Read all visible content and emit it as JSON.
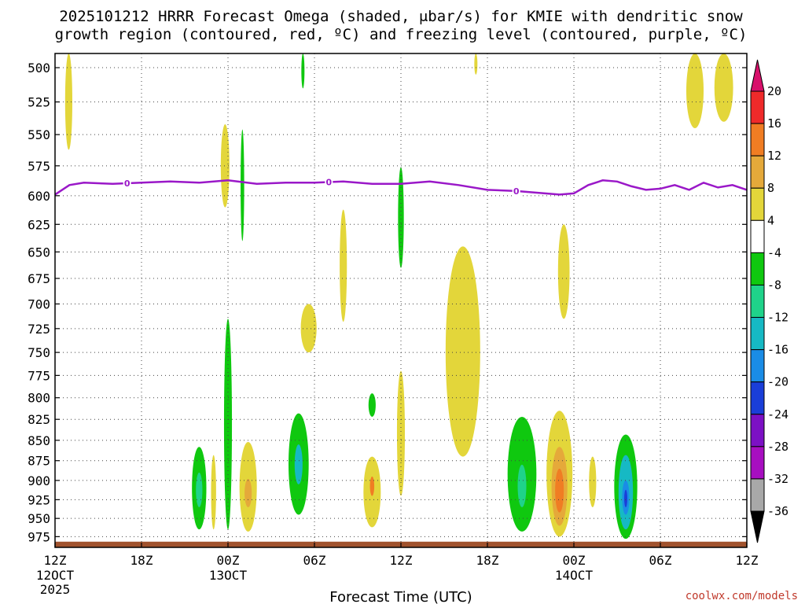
{
  "chart_data": {
    "type": "heatmap",
    "title_line1": "2025101212 HRRR Forecast Omega (shaded, μbar/s) for KMIE with dendritic snow",
    "title_line2": "growth region (contoured, red, ºC) and freezing level (contoured, purple, ºC)",
    "xlabel": "Forecast Time (UTC)",
    "credit": "coolwx.com/models",
    "x_hours": [
      0,
      6,
      12,
      18,
      24,
      30,
      36,
      42,
      48
    ],
    "x_ticks": [
      {
        "h": 0,
        "label": "12Z",
        "sub": "12OCT",
        "sub2": "2025"
      },
      {
        "h": 6,
        "label": "18Z"
      },
      {
        "h": 12,
        "label": "00Z",
        "sub": "13OCT"
      },
      {
        "h": 18,
        "label": "06Z"
      },
      {
        "h": 24,
        "label": "12Z"
      },
      {
        "h": 30,
        "label": "18Z"
      },
      {
        "h": 36,
        "label": "00Z",
        "sub": "14OCT"
      },
      {
        "h": 42,
        "label": "06Z"
      },
      {
        "h": 48,
        "label": "12Z"
      }
    ],
    "y_pressure_ticks": [
      "500",
      "525",
      "550",
      "575",
      "600",
      "625",
      "650",
      "675",
      "700",
      "725",
      "750",
      "775",
      "800",
      "825",
      "850",
      "875",
      "900",
      "925",
      "950",
      "975"
    ],
    "ylim_hpa": [
      990,
      490
    ],
    "colorbar": {
      "levels": [
        "20",
        "16",
        "12",
        "8",
        "4",
        "-4",
        "-8",
        "-12",
        "-16",
        "-20",
        "-24",
        "-28",
        "-32",
        "-36"
      ],
      "colors": [
        "#d8106b",
        "#ef2a2a",
        "#f07d23",
        "#e5a93a",
        "#e3d63a",
        "#ffffff",
        "#0fc80f",
        "#1fd38a",
        "#16b9c4",
        "#1a8ce6",
        "#1a3ed8",
        "#7c10c4",
        "#a70ec0",
        "#a8a8a8",
        "#000000"
      ]
    },
    "freezing_level": {
      "label": "0",
      "hours": [
        0,
        1,
        2,
        4,
        6,
        8,
        10,
        12,
        14,
        16,
        18,
        20,
        22,
        24,
        26,
        28,
        30,
        32,
        34,
        35,
        36,
        37,
        38,
        39,
        40,
        41,
        42,
        43,
        44,
        45,
        46,
        47,
        48
      ],
      "hpa": [
        599,
        591,
        589,
        590,
        589,
        588,
        589,
        587,
        590,
        589,
        589,
        588,
        590,
        590,
        588,
        591,
        595,
        596,
        598,
        599,
        598,
        591,
        587,
        588,
        592,
        595,
        594,
        591,
        595,
        589,
        593,
        591,
        595
      ]
    },
    "label_positions_h": [
      5,
      19,
      32
    ],
    "omega_regions": [
      {
        "level": 4,
        "h": 0.95,
        "p_top": 490,
        "p_bot": 562,
        "w": 0.5
      },
      {
        "level": 4,
        "h": 11.8,
        "p_top": 542,
        "p_bot": 610,
        "w": 0.6
      },
      {
        "level": -4,
        "h": 13.0,
        "p_top": 546,
        "p_bot": 640,
        "w": 0.25
      },
      {
        "level": -4,
        "h": 17.2,
        "p_top": 490,
        "p_bot": 515,
        "w": 0.2
      },
      {
        "level": 4,
        "h": 29.2,
        "p_top": 490,
        "p_bot": 505,
        "w": 0.15
      },
      {
        "level": 4,
        "h": 20.0,
        "p_top": 612,
        "p_bot": 718,
        "w": 0.5
      },
      {
        "level": -4,
        "h": 24.0,
        "p_top": 576,
        "p_bot": 665,
        "w": 0.4
      },
      {
        "level": 4,
        "h": 17.6,
        "p_top": 700,
        "p_bot": 750,
        "w": 1.1
      },
      {
        "level": 4,
        "h": 28.3,
        "p_top": 645,
        "p_bot": 870,
        "w": 2.4
      },
      {
        "level": 4,
        "h": 35.3,
        "p_top": 625,
        "p_bot": 715,
        "w": 0.8
      },
      {
        "level": -4,
        "h": 12.0,
        "p_top": 715,
        "p_bot": 965,
        "w": 0.55
      },
      {
        "level": -4,
        "h": 22.0,
        "p_top": 795,
        "p_bot": 822,
        "w": 0.5
      },
      {
        "level": 4,
        "h": 24.0,
        "p_top": 770,
        "p_bot": 920,
        "w": 0.55
      },
      {
        "level": -4,
        "h": 10.0,
        "p_top": 858,
        "p_bot": 965,
        "w": 1.0
      },
      {
        "level": -8,
        "h": 10.0,
        "p_top": 890,
        "p_bot": 935,
        "w": 0.45
      },
      {
        "level": 4,
        "h": 11.0,
        "p_top": 868,
        "p_bot": 965,
        "w": 0.35
      },
      {
        "level": 4,
        "h": 13.4,
        "p_top": 852,
        "p_bot": 968,
        "w": 1.2
      },
      {
        "level": 8,
        "h": 13.4,
        "p_top": 898,
        "p_bot": 935,
        "w": 0.5
      },
      {
        "level": -4,
        "h": 16.9,
        "p_top": 818,
        "p_bot": 945,
        "w": 1.4
      },
      {
        "level": -12,
        "h": 16.9,
        "p_top": 855,
        "p_bot": 905,
        "w": 0.55
      },
      {
        "level": 4,
        "h": 22.0,
        "p_top": 870,
        "p_bot": 962,
        "w": 1.2
      },
      {
        "level": 12,
        "h": 22.0,
        "p_top": 895,
        "p_bot": 920,
        "w": 0.3
      },
      {
        "level": -4,
        "h": 32.4,
        "p_top": 822,
        "p_bot": 968,
        "w": 2.0
      },
      {
        "level": -8,
        "h": 32.4,
        "p_top": 880,
        "p_bot": 935,
        "w": 0.6
      },
      {
        "level": 4,
        "h": 35.0,
        "p_top": 815,
        "p_bot": 975,
        "w": 1.8
      },
      {
        "level": 8,
        "h": 35.0,
        "p_top": 858,
        "p_bot": 960,
        "w": 1.1
      },
      {
        "level": 12,
        "h": 35.0,
        "p_top": 885,
        "p_bot": 942,
        "w": 0.6
      },
      {
        "level": 4,
        "h": 37.3,
        "p_top": 870,
        "p_bot": 935,
        "w": 0.5
      },
      {
        "level": -4,
        "h": 39.6,
        "p_top": 843,
        "p_bot": 978,
        "w": 1.6
      },
      {
        "level": -12,
        "h": 39.6,
        "p_top": 868,
        "p_bot": 965,
        "w": 1.0
      },
      {
        "level": -16,
        "h": 39.6,
        "p_top": 900,
        "p_bot": 945,
        "w": 0.5
      },
      {
        "level": -24,
        "h": 39.6,
        "p_top": 912,
        "p_bot": 935,
        "w": 0.2
      },
      {
        "level": 4,
        "h": 44.4,
        "p_top": 490,
        "p_bot": 545,
        "w": 1.2
      },
      {
        "level": 4,
        "h": 46.4,
        "p_top": 490,
        "p_bot": 540,
        "w": 1.3
      }
    ]
  }
}
